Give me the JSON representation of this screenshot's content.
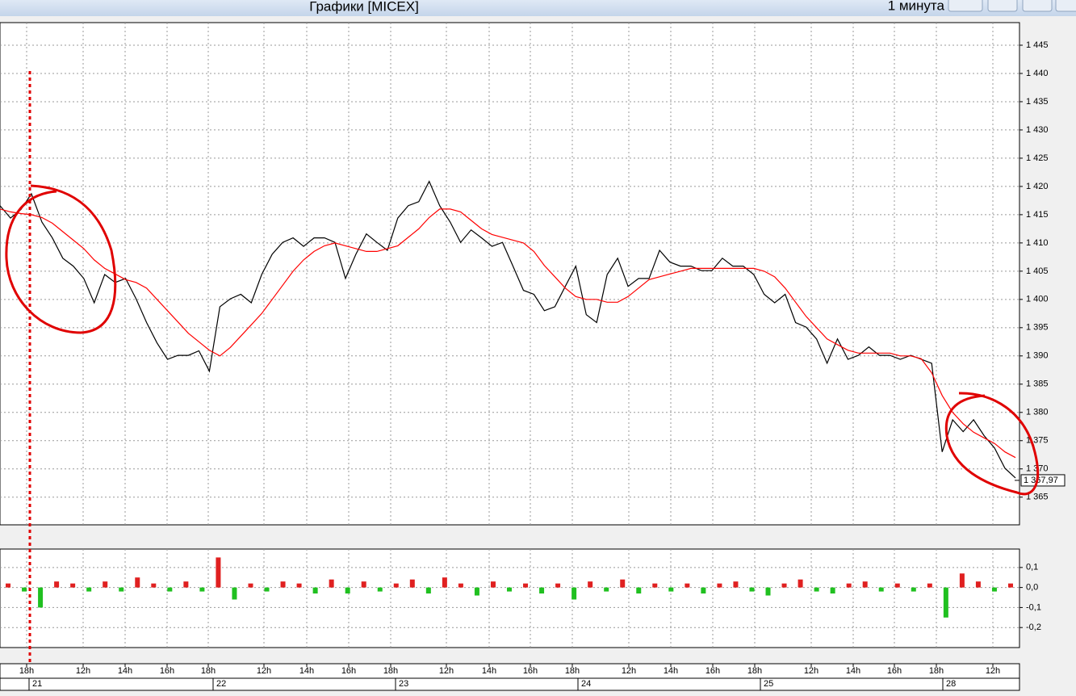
{
  "window": {
    "title": "Графики [MICEX]",
    "timeframe": "1 минута"
  },
  "chart_data": [
    {
      "type": "line",
      "series": [
        {
          "color": "#000000",
          "values": [
            1416.6,
            1414.4,
            1415.9,
            1418.7,
            1413.7,
            1410.9,
            1407.3,
            1405.9,
            1403.7,
            1399.4,
            1404.4,
            1403,
            1403.7,
            1400.1,
            1395.9,
            1392.3,
            1389.4,
            1390.1,
            1390.1,
            1390.9,
            1387.3,
            1398.7,
            1400.1,
            1400.9,
            1399.4,
            1404.4,
            1408,
            1410.1,
            1410.9,
            1409.4,
            1410.9,
            1410.9,
            1410.1,
            1403.7,
            1408,
            1411.6,
            1410.1,
            1408.7,
            1414.4,
            1416.6,
            1417.3,
            1420.9,
            1416.6,
            1413.7,
            1410.1,
            1412.3,
            1410.9,
            1409.4,
            1410.1,
            1405.9,
            1401.6,
            1400.9,
            1398,
            1398.7,
            1402.3,
            1405.9,
            1397.3,
            1395.9,
            1404.4,
            1407.3,
            1402.3,
            1403.7,
            1403.7,
            1408.7,
            1406.6,
            1405.9,
            1405.9,
            1405.1,
            1405.1,
            1407.3,
            1405.9,
            1405.9,
            1404.4,
            1400.9,
            1399.4,
            1400.9,
            1395.9,
            1395.1,
            1393,
            1388.7,
            1393,
            1389.4,
            1390.1,
            1391.6,
            1390.1,
            1390.1,
            1389.4,
            1390.1,
            1389.4,
            1388.7,
            1373,
            1378.7,
            1376.6,
            1378.7,
            1375.9,
            1373.7,
            1370.1,
            1368.4
          ]
        },
        {
          "color": "#ff0000",
          "values": [
            1416,
            1415.5,
            1415.2,
            1415,
            1414.5,
            1413.5,
            1412,
            1410.5,
            1409,
            1407,
            1405.5,
            1404.5,
            1403.5,
            1403,
            1402,
            1400,
            1398,
            1396,
            1394,
            1392.5,
            1391,
            1390,
            1391.5,
            1393.5,
            1395.5,
            1397.5,
            1400,
            1402.5,
            1405,
            1407,
            1408.5,
            1409.5,
            1410,
            1409.5,
            1409,
            1408.5,
            1408.5,
            1409,
            1409.5,
            1411,
            1412.5,
            1414.5,
            1416,
            1416,
            1415.5,
            1414,
            1412.5,
            1411.5,
            1411,
            1410.5,
            1410,
            1408.5,
            1406,
            1404,
            1402,
            1400.5,
            1400,
            1400,
            1399.5,
            1399.5,
            1400.5,
            1402,
            1403.5,
            1404,
            1404.5,
            1405,
            1405.5,
            1405.5,
            1405.5,
            1405.5,
            1405.5,
            1405.5,
            1405.5,
            1405,
            1404,
            1402,
            1399.5,
            1397,
            1395,
            1393,
            1392,
            1391,
            1390.5,
            1390.5,
            1390.5,
            1390.5,
            1390,
            1390,
            1389.5,
            1387,
            1383,
            1380,
            1378,
            1376.5,
            1375.5,
            1374.5,
            1373,
            1372
          ]
        }
      ],
      "ylim": [
        1360.1,
        1449
      ],
      "yticks": [
        {
          "value": 1365,
          "label": "1 365"
        },
        {
          "value": 1370,
          "label": "1 370"
        },
        {
          "value": 1375,
          "label": "1 375"
        },
        {
          "value": 1380,
          "label": "1 380"
        },
        {
          "value": 1385,
          "label": "1 385"
        },
        {
          "value": 1390,
          "label": "1 390"
        },
        {
          "value": 1395,
          "label": "1 395"
        },
        {
          "value": 1400,
          "label": "1 400"
        },
        {
          "value": 1405,
          "label": "1 405"
        },
        {
          "value": 1410,
          "label": "1 410"
        },
        {
          "value": 1415,
          "label": "1 415"
        },
        {
          "value": 1420,
          "label": "1 420"
        },
        {
          "value": 1425,
          "label": "1 425"
        },
        {
          "value": 1430,
          "label": "1 430"
        },
        {
          "value": 1435,
          "label": "1 435"
        },
        {
          "value": 1440,
          "label": "1 440"
        },
        {
          "value": 1445,
          "label": "1 445"
        }
      ],
      "grid": true,
      "last_value": {
        "value": 1367.97,
        "label": "1 367,97"
      },
      "time_labels": [
        "18h",
        "12h",
        "14h",
        "16h",
        "18h",
        "12h",
        "14h",
        "16h",
        "18h",
        "12h",
        "14h",
        "16h",
        "18h",
        "12h",
        "14h",
        "16h",
        "18h",
        "12h",
        "14h",
        "16h",
        "18h",
        "12h"
      ],
      "day_labels": [
        "21",
        "22",
        "23",
        "24",
        "25",
        "28"
      ]
    },
    {
      "type": "bar",
      "values": [
        0.02,
        -0.02,
        -0.1,
        0.03,
        0.02,
        -0.02,
        0.03,
        -0.02,
        0.05,
        0.02,
        -0.02,
        0.03,
        -0.02,
        0.15,
        -0.06,
        0.02,
        -0.02,
        0.03,
        0.02,
        -0.03,
        0.04,
        -0.03,
        0.03,
        -0.02,
        0.02,
        0.04,
        -0.03,
        0.05,
        0.02,
        -0.04,
        0.03,
        -0.02,
        0.02,
        -0.03,
        0.02,
        -0.06,
        0.03,
        -0.02,
        0.04,
        -0.03,
        0.02,
        -0.02,
        0.02,
        -0.03,
        0.02,
        0.03,
        -0.02,
        -0.04,
        0.02,
        0.04,
        -0.02,
        -0.03,
        0.02,
        0.03,
        -0.02,
        0.02,
        -0.02,
        0.02,
        -0.15,
        0.07,
        0.03,
        -0.02,
        0.02
      ],
      "positive_color": "#e02020",
      "negative_color": "#20c020",
      "ylim": [
        -0.3,
        0.192
      ],
      "yticks": [
        {
          "value": -0.2,
          "label": "-0,2"
        },
        {
          "value": -0.1,
          "label": "-0,1"
        },
        {
          "value": 0,
          "label": "0,0"
        },
        {
          "value": 0.1,
          "label": "0,1"
        }
      ],
      "grid": true
    }
  ]
}
